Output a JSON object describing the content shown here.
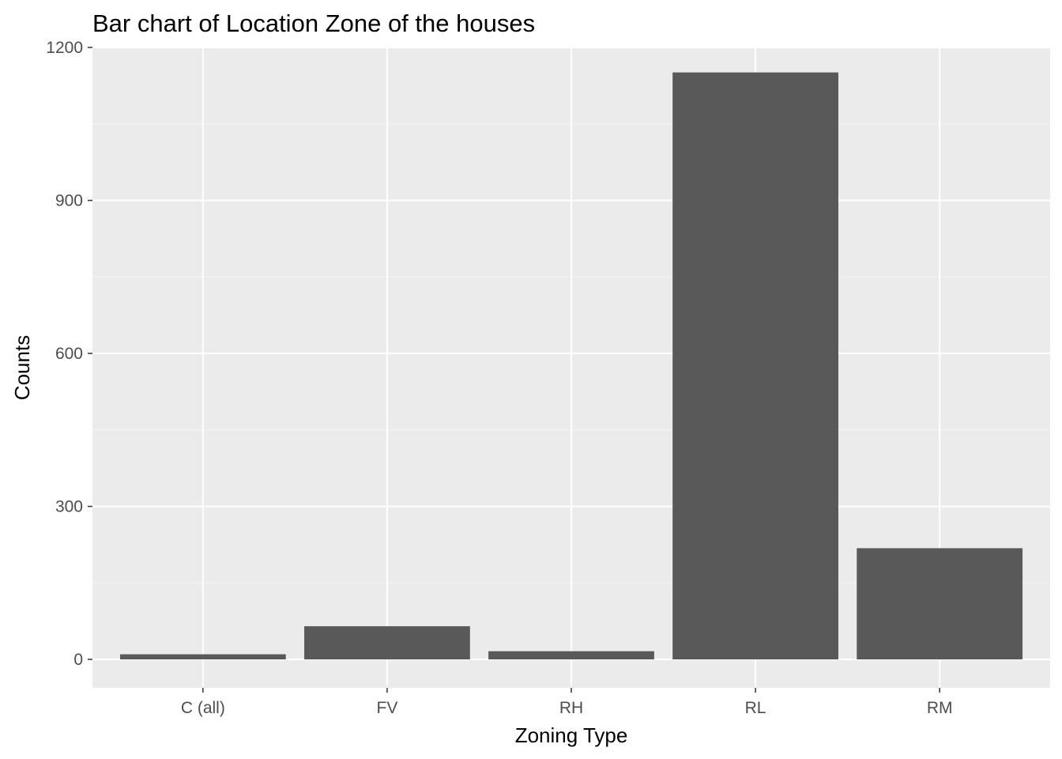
{
  "chart_data": {
    "type": "bar",
    "title": "Bar chart of Location Zone of the houses",
    "xlabel": "Zoning Type",
    "ylabel": "Counts",
    "categories": [
      "C (all)",
      "FV",
      "RH",
      "RL",
      "RM"
    ],
    "values": [
      10,
      65,
      16,
      1151,
      218
    ],
    "ylim": [
      0,
      1200
    ],
    "yticks": [
      0,
      300,
      600,
      900,
      1200
    ],
    "grid": true,
    "legend": "none",
    "colors": {
      "bar": "#595959",
      "panel": "#ebebeb",
      "grid_major": "#ffffff",
      "grid_minor": "#f5f5f5",
      "tick": "#333333"
    }
  }
}
